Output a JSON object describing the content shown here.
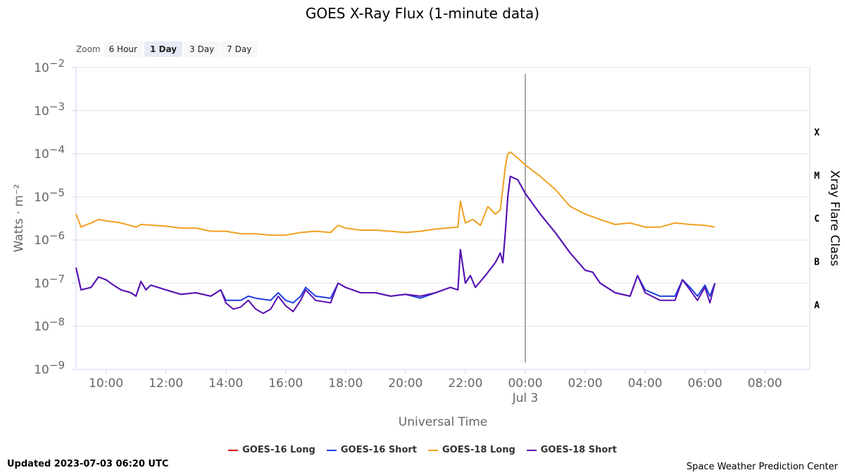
{
  "zoom": {
    "label": "Zoom",
    "options": [
      "6 Hour",
      "1 Day",
      "3 Day",
      "7 Day"
    ],
    "active": "1 Day"
  },
  "footer": {
    "updated": "Updated 2023-07-03 06:20 UTC",
    "credit": "Space Weather Prediction Center"
  },
  "chart_data": {
    "type": "line",
    "title": "GOES X-Ray Flux (1-minute data)",
    "xlabel": "Universal Time",
    "ylabel": "Watts · m⁻²",
    "ylabel_right": "Xray Flare Class",
    "y_scale": "log",
    "ylim": [
      1e-09,
      0.01
    ],
    "y_ticks": [
      {
        "value": 0.01,
        "base": "10",
        "exp": "−2"
      },
      {
        "value": 0.001,
        "base": "10",
        "exp": "−3"
      },
      {
        "value": 0.0001,
        "base": "10",
        "exp": "−4"
      },
      {
        "value": 1e-05,
        "base": "10",
        "exp": "−5"
      },
      {
        "value": 1e-06,
        "base": "10",
        "exp": "−6"
      },
      {
        "value": 1e-07,
        "base": "10",
        "exp": "−7"
      },
      {
        "value": 1e-08,
        "base": "10",
        "exp": "−8"
      },
      {
        "value": 1e-09,
        "base": "10",
        "exp": "−9"
      }
    ],
    "flare_classes": [
      {
        "label": "X",
        "value": 0.00032
      },
      {
        "label": "M",
        "value": 3.2e-05
      },
      {
        "label": "C",
        "value": 3.2e-06
      },
      {
        "label": "B",
        "value": 3.2e-07
      },
      {
        "label": "A",
        "value": 3.2e-08
      }
    ],
    "xlim": [
      "2023-07-02T09:00",
      "2023-07-03T09:30"
    ],
    "x_ticks": [
      {
        "time": "2023-07-02T10:00",
        "label": "10:00"
      },
      {
        "time": "2023-07-02T12:00",
        "label": "12:00"
      },
      {
        "time": "2023-07-02T14:00",
        "label": "14:00"
      },
      {
        "time": "2023-07-02T16:00",
        "label": "16:00"
      },
      {
        "time": "2023-07-02T18:00",
        "label": "18:00"
      },
      {
        "time": "2023-07-02T20:00",
        "label": "20:00"
      },
      {
        "time": "2023-07-02T22:00",
        "label": "22:00"
      },
      {
        "time": "2023-07-03T00:00",
        "label": "00:00",
        "sublabel": "Jul 3"
      },
      {
        "time": "2023-07-03T02:00",
        "label": "02:00"
      },
      {
        "time": "2023-07-03T04:00",
        "label": "04:00"
      },
      {
        "time": "2023-07-03T06:00",
        "label": "06:00"
      },
      {
        "time": "2023-07-03T08:00",
        "label": "08:00"
      }
    ],
    "crosshair_time": "2023-07-03T00:00",
    "legend_position": "bottom",
    "series": [
      {
        "name": "GOES-16 Long",
        "color": "#e00000",
        "points": []
      },
      {
        "name": "GOES-16 Short",
        "color": "#1f3fe0",
        "points": [
          [
            "2023-07-02T09:00",
            2.3e-07
          ],
          [
            "2023-07-02T09:10",
            7e-08
          ],
          [
            "2023-07-02T09:30",
            8e-08
          ],
          [
            "2023-07-02T09:45",
            1.4e-07
          ],
          [
            "2023-07-02T10:00",
            1.2e-07
          ],
          [
            "2023-07-02T10:15",
            9e-08
          ],
          [
            "2023-07-02T10:30",
            7e-08
          ],
          [
            "2023-07-02T10:50",
            6e-08
          ],
          [
            "2023-07-02T11:00",
            5e-08
          ],
          [
            "2023-07-02T11:10",
            1.1e-07
          ],
          [
            "2023-07-02T11:20",
            7e-08
          ],
          [
            "2023-07-02T11:30",
            9e-08
          ],
          [
            "2023-07-02T12:00",
            7e-08
          ],
          [
            "2023-07-02T12:30",
            5.5e-08
          ],
          [
            "2023-07-02T13:00",
            6e-08
          ],
          [
            "2023-07-02T13:30",
            5e-08
          ],
          [
            "2023-07-02T13:50",
            7e-08
          ],
          [
            "2023-07-02T14:00",
            4e-08
          ],
          [
            "2023-07-02T14:30",
            4e-08
          ],
          [
            "2023-07-02T14:45",
            5e-08
          ],
          [
            "2023-07-02T15:00",
            4.5e-08
          ],
          [
            "2023-07-02T15:30",
            4e-08
          ],
          [
            "2023-07-02T15:45",
            6e-08
          ],
          [
            "2023-07-02T16:00",
            4e-08
          ],
          [
            "2023-07-02T16:15",
            3.5e-08
          ],
          [
            "2023-07-02T16:30",
            5e-08
          ],
          [
            "2023-07-02T16:40",
            8e-08
          ],
          [
            "2023-07-02T17:00",
            5e-08
          ],
          [
            "2023-07-02T17:30",
            4.5e-08
          ],
          [
            "2023-07-02T17:45",
            1e-07
          ],
          [
            "2023-07-02T18:00",
            8e-08
          ],
          [
            "2023-07-02T18:30",
            6e-08
          ],
          [
            "2023-07-02T19:00",
            6e-08
          ],
          [
            "2023-07-02T19:30",
            5e-08
          ],
          [
            "2023-07-02T20:00",
            5.5e-08
          ],
          [
            "2023-07-02T20:30",
            4.5e-08
          ],
          [
            "2023-07-02T21:00",
            6e-08
          ],
          [
            "2023-07-02T21:30",
            8e-08
          ],
          [
            "2023-07-02T21:45",
            7e-08
          ],
          [
            "2023-07-02T21:50",
            6e-07
          ],
          [
            "2023-07-02T22:00",
            1e-07
          ],
          [
            "2023-07-02T22:10",
            1.5e-07
          ],
          [
            "2023-07-02T22:20",
            8e-08
          ],
          [
            "2023-07-02T22:40",
            1.5e-07
          ],
          [
            "2023-07-02T23:00",
            3e-07
          ],
          [
            "2023-07-02T23:10",
            5e-07
          ],
          [
            "2023-07-02T23:15",
            3e-07
          ],
          [
            "2023-07-02T23:20",
            1.5e-06
          ],
          [
            "2023-07-02T23:25",
            1e-05
          ],
          [
            "2023-07-02T23:30",
            3e-05
          ],
          [
            "2023-07-02T23:45",
            2.5e-05
          ],
          [
            "2023-07-03T00:00",
            1.2e-05
          ],
          [
            "2023-07-03T00:30",
            4e-06
          ],
          [
            "2023-07-03T01:00",
            1.5e-06
          ],
          [
            "2023-07-03T01:30",
            5e-07
          ],
          [
            "2023-07-03T02:00",
            2e-07
          ],
          [
            "2023-07-03T02:15",
            1.8e-07
          ],
          [
            "2023-07-03T02:30",
            1e-07
          ],
          [
            "2023-07-03T03:00",
            6e-08
          ],
          [
            "2023-07-03T03:30",
            5e-08
          ],
          [
            "2023-07-03T03:45",
            1.5e-07
          ],
          [
            "2023-07-03T04:00",
            7e-08
          ],
          [
            "2023-07-03T04:30",
            5e-08
          ],
          [
            "2023-07-03T05:00",
            5e-08
          ],
          [
            "2023-07-03T05:15",
            1.2e-07
          ],
          [
            "2023-07-03T05:30",
            8e-08
          ],
          [
            "2023-07-03T05:45",
            5e-08
          ],
          [
            "2023-07-03T06:00",
            9e-08
          ],
          [
            "2023-07-03T06:10",
            5e-08
          ],
          [
            "2023-07-03T06:20",
            1e-07
          ]
        ]
      },
      {
        "name": "GOES-18 Long",
        "color": "#f0a020",
        "points": [
          [
            "2023-07-02T09:00",
            4e-06
          ],
          [
            "2023-07-02T09:10",
            2e-06
          ],
          [
            "2023-07-02T09:30",
            2.5e-06
          ],
          [
            "2023-07-02T09:45",
            3e-06
          ],
          [
            "2023-07-02T10:00",
            2.8e-06
          ],
          [
            "2023-07-02T10:30",
            2.5e-06
          ],
          [
            "2023-07-02T11:00",
            2e-06
          ],
          [
            "2023-07-02T11:10",
            2.3e-06
          ],
          [
            "2023-07-02T12:00",
            2.1e-06
          ],
          [
            "2023-07-02T12:30",
            1.9e-06
          ],
          [
            "2023-07-02T13:00",
            1.9e-06
          ],
          [
            "2023-07-02T13:30",
            1.6e-06
          ],
          [
            "2023-07-02T14:00",
            1.6e-06
          ],
          [
            "2023-07-02T14:30",
            1.4e-06
          ],
          [
            "2023-07-02T15:00",
            1.4e-06
          ],
          [
            "2023-07-02T15:30",
            1.3e-06
          ],
          [
            "2023-07-02T16:00",
            1.3e-06
          ],
          [
            "2023-07-02T16:30",
            1.5e-06
          ],
          [
            "2023-07-02T17:00",
            1.6e-06
          ],
          [
            "2023-07-02T17:30",
            1.5e-06
          ],
          [
            "2023-07-02T17:45",
            2.2e-06
          ],
          [
            "2023-07-02T18:00",
            1.9e-06
          ],
          [
            "2023-07-02T18:30",
            1.7e-06
          ],
          [
            "2023-07-02T19:00",
            1.7e-06
          ],
          [
            "2023-07-02T19:30",
            1.6e-06
          ],
          [
            "2023-07-02T20:00",
            1.5e-06
          ],
          [
            "2023-07-02T20:30",
            1.6e-06
          ],
          [
            "2023-07-02T21:00",
            1.8e-06
          ],
          [
            "2023-07-02T21:45",
            2e-06
          ],
          [
            "2023-07-02T21:50",
            8e-06
          ],
          [
            "2023-07-02T22:00",
            2.5e-06
          ],
          [
            "2023-07-02T22:15",
            3e-06
          ],
          [
            "2023-07-02T22:30",
            2.2e-06
          ],
          [
            "2023-07-02T22:45",
            6e-06
          ],
          [
            "2023-07-02T23:00",
            4e-06
          ],
          [
            "2023-07-02T23:10",
            5e-06
          ],
          [
            "2023-07-02T23:20",
            5e-05
          ],
          [
            "2023-07-02T23:25",
            0.0001
          ],
          [
            "2023-07-02T23:30",
            0.00011
          ],
          [
            "2023-07-02T23:45",
            8e-05
          ],
          [
            "2023-07-03T00:00",
            5.5e-05
          ],
          [
            "2023-07-03T00:30",
            3e-05
          ],
          [
            "2023-07-03T01:00",
            1.5e-05
          ],
          [
            "2023-07-03T01:30",
            6e-06
          ],
          [
            "2023-07-03T02:00",
            4e-06
          ],
          [
            "2023-07-03T02:30",
            3e-06
          ],
          [
            "2023-07-03T03:00",
            2.3e-06
          ],
          [
            "2023-07-03T03:30",
            2.5e-06
          ],
          [
            "2023-07-03T04:00",
            2e-06
          ],
          [
            "2023-07-03T04:30",
            2e-06
          ],
          [
            "2023-07-03T05:00",
            2.5e-06
          ],
          [
            "2023-07-03T05:30",
            2.3e-06
          ],
          [
            "2023-07-03T06:00",
            2.2e-06
          ],
          [
            "2023-07-03T06:20",
            2e-06
          ]
        ]
      },
      {
        "name": "GOES-18 Short",
        "color": "#5a10b0",
        "points": [
          [
            "2023-07-02T09:00",
            2.3e-07
          ],
          [
            "2023-07-02T09:10",
            7e-08
          ],
          [
            "2023-07-02T09:30",
            8e-08
          ],
          [
            "2023-07-02T09:45",
            1.4e-07
          ],
          [
            "2023-07-02T10:00",
            1.2e-07
          ],
          [
            "2023-07-02T10:15",
            9e-08
          ],
          [
            "2023-07-02T10:30",
            7e-08
          ],
          [
            "2023-07-02T10:50",
            6e-08
          ],
          [
            "2023-07-02T11:00",
            5e-08
          ],
          [
            "2023-07-02T11:10",
            1.1e-07
          ],
          [
            "2023-07-02T11:20",
            7e-08
          ],
          [
            "2023-07-02T11:30",
            9e-08
          ],
          [
            "2023-07-02T12:00",
            7e-08
          ],
          [
            "2023-07-02T12:30",
            5.5e-08
          ],
          [
            "2023-07-02T13:00",
            6e-08
          ],
          [
            "2023-07-02T13:30",
            5e-08
          ],
          [
            "2023-07-02T13:50",
            7e-08
          ],
          [
            "2023-07-02T14:00",
            3.5e-08
          ],
          [
            "2023-07-02T14:15",
            2.5e-08
          ],
          [
            "2023-07-02T14:30",
            2.8e-08
          ],
          [
            "2023-07-02T14:45",
            4e-08
          ],
          [
            "2023-07-02T15:00",
            2.5e-08
          ],
          [
            "2023-07-02T15:15",
            2e-08
          ],
          [
            "2023-07-02T15:30",
            2.5e-08
          ],
          [
            "2023-07-02T15:45",
            5e-08
          ],
          [
            "2023-07-02T16:00",
            3e-08
          ],
          [
            "2023-07-02T16:15",
            2.2e-08
          ],
          [
            "2023-07-02T16:30",
            4e-08
          ],
          [
            "2023-07-02T16:40",
            7e-08
          ],
          [
            "2023-07-02T17:00",
            4e-08
          ],
          [
            "2023-07-02T17:30",
            3.5e-08
          ],
          [
            "2023-07-02T17:45",
            1e-07
          ],
          [
            "2023-07-02T18:00",
            8e-08
          ],
          [
            "2023-07-02T18:30",
            6e-08
          ],
          [
            "2023-07-02T19:00",
            6e-08
          ],
          [
            "2023-07-02T19:30",
            5e-08
          ],
          [
            "2023-07-02T20:00",
            5.5e-08
          ],
          [
            "2023-07-02T20:30",
            5e-08
          ],
          [
            "2023-07-02T21:00",
            6e-08
          ],
          [
            "2023-07-02T21:30",
            8e-08
          ],
          [
            "2023-07-02T21:45",
            7e-08
          ],
          [
            "2023-07-02T21:50",
            6e-07
          ],
          [
            "2023-07-02T22:00",
            1e-07
          ],
          [
            "2023-07-02T22:10",
            1.5e-07
          ],
          [
            "2023-07-02T22:20",
            8e-08
          ],
          [
            "2023-07-02T22:40",
            1.5e-07
          ],
          [
            "2023-07-02T23:00",
            3e-07
          ],
          [
            "2023-07-02T23:10",
            5e-07
          ],
          [
            "2023-07-02T23:15",
            3e-07
          ],
          [
            "2023-07-02T23:20",
            1.5e-06
          ],
          [
            "2023-07-02T23:25",
            1e-05
          ],
          [
            "2023-07-02T23:30",
            3e-05
          ],
          [
            "2023-07-02T23:45",
            2.5e-05
          ],
          [
            "2023-07-03T00:00",
            1.2e-05
          ],
          [
            "2023-07-03T00:30",
            4e-06
          ],
          [
            "2023-07-03T01:00",
            1.5e-06
          ],
          [
            "2023-07-03T01:30",
            5e-07
          ],
          [
            "2023-07-03T02:00",
            2e-07
          ],
          [
            "2023-07-03T02:15",
            1.8e-07
          ],
          [
            "2023-07-03T02:30",
            1e-07
          ],
          [
            "2023-07-03T03:00",
            6e-08
          ],
          [
            "2023-07-03T03:30",
            5e-08
          ],
          [
            "2023-07-03T03:45",
            1.5e-07
          ],
          [
            "2023-07-03T04:00",
            6e-08
          ],
          [
            "2023-07-03T04:30",
            4e-08
          ],
          [
            "2023-07-03T05:00",
            4e-08
          ],
          [
            "2023-07-03T05:15",
            1.2e-07
          ],
          [
            "2023-07-03T05:30",
            7e-08
          ],
          [
            "2023-07-03T05:45",
            4e-08
          ],
          [
            "2023-07-03T06:00",
            8e-08
          ],
          [
            "2023-07-03T06:10",
            3.5e-08
          ],
          [
            "2023-07-03T06:20",
            1e-07
          ]
        ]
      }
    ]
  }
}
